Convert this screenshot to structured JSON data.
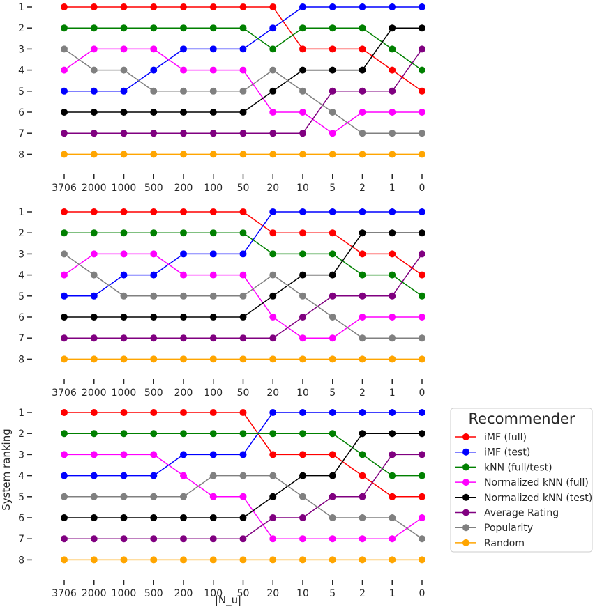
{
  "chart_data": {
    "type": "line",
    "xlabel": "|N_u|",
    "ylabel": "System ranking",
    "x_tick_labels": [
      "3706",
      "2000",
      "1000",
      "500",
      "200",
      "100",
      "50",
      "20",
      "10",
      "5",
      "2",
      "1",
      "0"
    ],
    "y_tick_labels": [
      "1",
      "2",
      "3",
      "4",
      "5",
      "6",
      "7",
      "8"
    ],
    "y_inverted": true,
    "ylim": [
      1,
      8
    ],
    "legend": {
      "title": "Recommender",
      "placement": "right of bottom panel",
      "entries": [
        "iMF (full)",
        "iMF (test)",
        "kNN (full/test)",
        "Normalized kNN (full)",
        "Normalized kNN (test)",
        "Average Rating",
        "Popularity",
        "Random"
      ]
    },
    "colors": {
      "iMF (full)": "#ff0000",
      "iMF (test)": "#0000ff",
      "kNN (full/test)": "#008000",
      "Normalized kNN (full)": "#ff00ff",
      "Normalized kNN (test)": "#000000",
      "Average Rating": "#800080",
      "Popularity": "#808080",
      "Random": "#ffa500"
    },
    "panels": [
      {
        "series": [
          {
            "name": "iMF (full)",
            "values": [
              1,
              1,
              1,
              1,
              1,
              1,
              1,
              1,
              3,
              3,
              3,
              4,
              5
            ]
          },
          {
            "name": "iMF (test)",
            "values": [
              5,
              5,
              5,
              4,
              3,
              3,
              3,
              2,
              1,
              1,
              1,
              1,
              1
            ]
          },
          {
            "name": "kNN (full/test)",
            "values": [
              2,
              2,
              2,
              2,
              2,
              2,
              2,
              3,
              2,
              2,
              2,
              3,
              4
            ]
          },
          {
            "name": "Normalized kNN (full)",
            "values": [
              4,
              3,
              3,
              3,
              4,
              4,
              4,
              6,
              6,
              7,
              6,
              6,
              6
            ]
          },
          {
            "name": "Normalized kNN (test)",
            "values": [
              6,
              6,
              6,
              6,
              6,
              6,
              6,
              5,
              4,
              4,
              4,
              2,
              2
            ]
          },
          {
            "name": "Average Rating",
            "values": [
              7,
              7,
              7,
              7,
              7,
              7,
              7,
              7,
              7,
              5,
              5,
              5,
              3
            ]
          },
          {
            "name": "Popularity",
            "values": [
              3,
              4,
              4,
              5,
              5,
              5,
              5,
              4,
              5,
              6,
              7,
              7,
              7
            ]
          },
          {
            "name": "Random",
            "values": [
              8,
              8,
              8,
              8,
              8,
              8,
              8,
              8,
              8,
              8,
              8,
              8,
              8
            ]
          }
        ]
      },
      {
        "series": [
          {
            "name": "iMF (full)",
            "values": [
              1,
              1,
              1,
              1,
              1,
              1,
              1,
              2,
              2,
              2,
              3,
              3,
              4
            ]
          },
          {
            "name": "iMF (test)",
            "values": [
              5,
              5,
              4,
              4,
              3,
              3,
              3,
              1,
              1,
              1,
              1,
              1,
              1
            ]
          },
          {
            "name": "kNN (full/test)",
            "values": [
              2,
              2,
              2,
              2,
              2,
              2,
              2,
              3,
              3,
              3,
              4,
              4,
              5
            ]
          },
          {
            "name": "Normalized kNN (full)",
            "values": [
              4,
              3,
              3,
              3,
              4,
              4,
              4,
              6,
              7,
              7,
              6,
              6,
              6
            ]
          },
          {
            "name": "Normalized kNN (test)",
            "values": [
              6,
              6,
              6,
              6,
              6,
              6,
              6,
              5,
              4,
              4,
              2,
              2,
              2
            ]
          },
          {
            "name": "Average Rating",
            "values": [
              7,
              7,
              7,
              7,
              7,
              7,
              7,
              7,
              6,
              5,
              5,
              5,
              3
            ]
          },
          {
            "name": "Popularity",
            "values": [
              3,
              4,
              5,
              5,
              5,
              5,
              5,
              4,
              5,
              6,
              7,
              7,
              7
            ]
          },
          {
            "name": "Random",
            "values": [
              8,
              8,
              8,
              8,
              8,
              8,
              8,
              8,
              8,
              8,
              8,
              8,
              8
            ]
          }
        ]
      },
      {
        "series": [
          {
            "name": "iMF (full)",
            "values": [
              1,
              1,
              1,
              1,
              1,
              1,
              1,
              3,
              3,
              3,
              4,
              5,
              5
            ]
          },
          {
            "name": "iMF (test)",
            "values": [
              4,
              4,
              4,
              4,
              3,
              3,
              3,
              1,
              1,
              1,
              1,
              1,
              1
            ]
          },
          {
            "name": "kNN (full/test)",
            "values": [
              2,
              2,
              2,
              2,
              2,
              2,
              2,
              2,
              2,
              2,
              3,
              4,
              4
            ]
          },
          {
            "name": "Normalized kNN (full)",
            "values": [
              3,
              3,
              3,
              3,
              4,
              5,
              5,
              7,
              7,
              7,
              7,
              7,
              6
            ]
          },
          {
            "name": "Normalized kNN (test)",
            "values": [
              6,
              6,
              6,
              6,
              6,
              6,
              6,
              5,
              4,
              4,
              2,
              2,
              2
            ]
          },
          {
            "name": "Average Rating",
            "values": [
              7,
              7,
              7,
              7,
              7,
              7,
              7,
              6,
              6,
              5,
              5,
              3,
              3
            ]
          },
          {
            "name": "Popularity",
            "values": [
              5,
              5,
              5,
              5,
              5,
              4,
              4,
              4,
              5,
              6,
              6,
              6,
              7
            ]
          },
          {
            "name": "Random",
            "values": [
              8,
              8,
              8,
              8,
              8,
              8,
              8,
              8,
              8,
              8,
              8,
              8,
              8
            ]
          }
        ]
      }
    ]
  }
}
